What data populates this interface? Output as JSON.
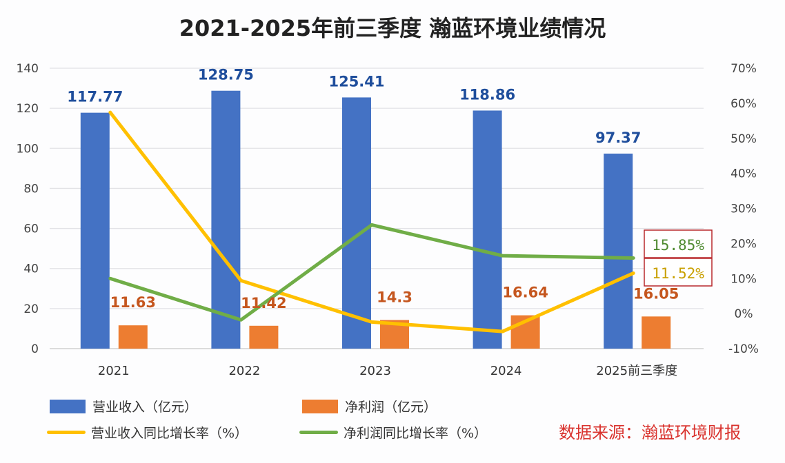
{
  "chart_data": {
    "type": "bar+line",
    "title": "2021-2025年前三季度 瀚蓝环境业绩情况",
    "categories": [
      "2021",
      "2022",
      "2023",
      "2024",
      "2025前三季度"
    ],
    "y_left": {
      "range": [
        0,
        140
      ],
      "ticks": [
        "0",
        "20",
        "40",
        "60",
        "80",
        "100",
        "120",
        "140"
      ],
      "values": [
        0,
        20,
        40,
        60,
        80,
        100,
        120,
        140
      ]
    },
    "y_right": {
      "range": [
        -10,
        70
      ],
      "ticks": [
        "-10%",
        "0%",
        "10%",
        "20%",
        "30%",
        "40%",
        "50%",
        "60%",
        "70%"
      ],
      "values": [
        -10,
        0,
        10,
        20,
        30,
        40,
        50,
        60,
        70
      ]
    },
    "grid": true,
    "series": [
      {
        "name": "营业收入（亿元）",
        "type": "bar",
        "axis": "left",
        "color": "#4472c4",
        "values": [
          117.77,
          128.75,
          125.41,
          118.86,
          97.37
        ],
        "labels": [
          "117.77",
          "128.75",
          "125.41",
          "118.86",
          "97.37"
        ]
      },
      {
        "name": "净利润（亿元）",
        "type": "bar",
        "axis": "left",
        "color": "#ed7d31",
        "values": [
          11.63,
          11.42,
          14.3,
          16.64,
          16.05
        ],
        "labels": [
          "11.63",
          "11.42",
          "14.3",
          "16.64",
          "16.05"
        ]
      },
      {
        "name": "营业收入同比增长率（%）",
        "type": "line",
        "axis": "right",
        "color": "#ffc000",
        "values": [
          57.4,
          9.4,
          -2.4,
          -5.1,
          11.52
        ]
      },
      {
        "name": "净利润同比增长率（%）",
        "type": "line",
        "axis": "right",
        "color": "#70ad47",
        "values": [
          10.0,
          -1.8,
          25.3,
          16.5,
          15.85
        ]
      }
    ],
    "annotations": [
      {
        "text": "15.85%",
        "series": "净利润同比增长率（%）",
        "color": "#4e8a30"
      },
      {
        "text": "11.52%",
        "series": "营业收入同比增长率（%）",
        "color": "#c9a000"
      }
    ],
    "legend_position": "bottom"
  },
  "legend": {
    "items": [
      {
        "label": "营业收入（亿元）",
        "kind": "box",
        "color": "#4472c4"
      },
      {
        "label": "净利润（亿元）",
        "kind": "box",
        "color": "#ed7d31"
      },
      {
        "label": "营业收入同比增长率（%）",
        "kind": "line",
        "color": "#ffc000"
      },
      {
        "label": "净利润同比增长率（%）",
        "kind": "line",
        "color": "#70ad47"
      }
    ]
  },
  "source": "数据来源：瀚蓝环境财报"
}
